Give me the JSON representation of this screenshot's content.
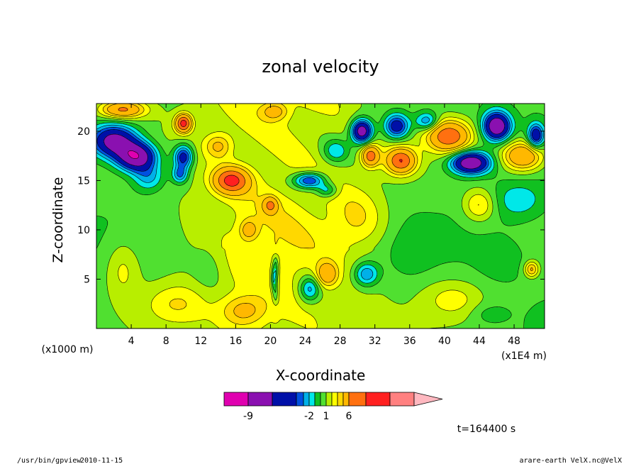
{
  "chart_data": {
    "type": "heatmap",
    "title": "zonal velocity",
    "xlabel": "X-coordinate",
    "ylabel": "Z-coordinate",
    "x_unit_label": "(x1E4 m)",
    "y_unit_label": "(x1000 m)",
    "xlim": [
      0,
      51.5
    ],
    "ylim": [
      0,
      22.8
    ],
    "x_ticks": [
      4,
      8,
      12,
      16,
      20,
      24,
      28,
      32,
      36,
      40,
      44,
      48
    ],
    "y_ticks": [
      5,
      10,
      15,
      20
    ],
    "colorbar": {
      "levels": [
        -12,
        -9,
        -6,
        -4,
        -3,
        -2,
        -1,
        0,
        1,
        2,
        3,
        4,
        6,
        8,
        10,
        13
      ],
      "colors": [
        "#e000b0",
        "#8a10b0",
        "#0010a8",
        "#0050e0",
        "#00b0e8",
        "#00e8e8",
        "#10c020",
        "#50e030",
        "#b8ee00",
        "#ffff00",
        "#ffd800",
        "#ffb800",
        "#ff7010",
        "#ff2020",
        "#ff8080",
        "#ffb8c0"
      ],
      "tick_labels": [
        {
          "value": -9,
          "text": "-9"
        },
        {
          "value": -2,
          "text": "-2"
        },
        {
          "value": 1,
          "text": "1"
        },
        {
          "value": 6,
          "text": "6"
        }
      ]
    },
    "time_label": "t=164400 s",
    "blobs": [
      {
        "x": 2,
        "z": 19,
        "rx": 2.6,
        "rz": 1.6,
        "v": -8
      },
      {
        "x": 4.6,
        "z": 17.4,
        "rx": 2.2,
        "rz": 1.4,
        "v": -9
      },
      {
        "x": 6,
        "z": 15.3,
        "rx": 1.8,
        "rz": 1.4,
        "v": -3
      },
      {
        "x": 10,
        "z": 17.4,
        "rx": 1.1,
        "rz": 1.2,
        "v": -6
      },
      {
        "x": 9.6,
        "z": 15.6,
        "rx": 0.9,
        "rz": 0.9,
        "v": -4
      },
      {
        "x": 3,
        "z": 22.2,
        "rx": 2.6,
        "rz": 0.9,
        "v": 6
      },
      {
        "x": 10,
        "z": 20.8,
        "rx": 0.9,
        "rz": 0.9,
        "v": 8
      },
      {
        "x": 14,
        "z": 18.5,
        "rx": 1.5,
        "rz": 1.2,
        "v": 3
      },
      {
        "x": 15.5,
        "z": 15,
        "rx": 2,
        "rz": 1.3,
        "v": 7
      },
      {
        "x": 20.5,
        "z": 22,
        "rx": 1.5,
        "rz": 0.9,
        "v": 3
      },
      {
        "x": 24.5,
        "z": 15,
        "rx": 1.8,
        "rz": 0.8,
        "v": -6
      },
      {
        "x": 26.5,
        "z": 14,
        "rx": 1.2,
        "rz": 0.7,
        "v": -3
      },
      {
        "x": 27.5,
        "z": 18,
        "rx": 1.5,
        "rz": 1.2,
        "v": -3
      },
      {
        "x": 30.5,
        "z": 20,
        "rx": 1.2,
        "rz": 1.2,
        "v": -9
      },
      {
        "x": 31.5,
        "z": 17.5,
        "rx": 1,
        "rz": 1.1,
        "v": 6
      },
      {
        "x": 34.5,
        "z": 20.5,
        "rx": 1.4,
        "rz": 1.2,
        "v": -6
      },
      {
        "x": 35,
        "z": 17,
        "rx": 1.7,
        "rz": 1.3,
        "v": 7
      },
      {
        "x": 38,
        "z": 21,
        "rx": 1.3,
        "rz": 0.9,
        "v": -4
      },
      {
        "x": 40.5,
        "z": 19.5,
        "rx": 2.5,
        "rz": 1.6,
        "v": 7
      },
      {
        "x": 43,
        "z": 16.8,
        "rx": 2.2,
        "rz": 1.1,
        "v": -9
      },
      {
        "x": 46,
        "z": 20.5,
        "rx": 1.5,
        "rz": 1.4,
        "v": -9
      },
      {
        "x": 49,
        "z": 17.5,
        "rx": 2.4,
        "rz": 1.5,
        "v": 6
      },
      {
        "x": 50.5,
        "z": 19.5,
        "rx": 0.9,
        "rz": 1.2,
        "v": -6
      },
      {
        "x": 48.5,
        "z": 13,
        "rx": 2.8,
        "rz": 1.8,
        "v": -2
      },
      {
        "x": 44,
        "z": 12.5,
        "rx": 1.8,
        "rz": 1.6,
        "v": 3
      },
      {
        "x": 30,
        "z": 11,
        "rx": 3,
        "rz": 3,
        "v": 2
      },
      {
        "x": 31,
        "z": 5.5,
        "rx": 1.4,
        "rz": 1.2,
        "v": -4
      },
      {
        "x": 24.5,
        "z": 4,
        "rx": 1.2,
        "rz": 1.3,
        "v": -4
      },
      {
        "x": 26.5,
        "z": 5.5,
        "rx": 1.2,
        "rz": 1.2,
        "v": 4
      },
      {
        "x": 20.5,
        "z": 5,
        "rx": 0.4,
        "rz": 1.3,
        "v": -6
      },
      {
        "x": 13,
        "z": 6,
        "rx": 2,
        "rz": 3,
        "v": -1
      },
      {
        "x": 3,
        "z": 6,
        "rx": 2,
        "rz": 3,
        "v": 2
      },
      {
        "x": 9,
        "z": 2.5,
        "rx": 3.5,
        "rz": 2,
        "v": 2
      },
      {
        "x": 17,
        "z": 1.8,
        "rx": 2.5,
        "rz": 1.5,
        "v": 3
      },
      {
        "x": 41,
        "z": 3,
        "rx": 3.5,
        "rz": 2,
        "v": 2
      },
      {
        "x": 36,
        "z": 8,
        "rx": 2.5,
        "rz": 2.5,
        "v": -1
      },
      {
        "x": 46.5,
        "z": 7,
        "rx": 2.5,
        "rz": 2,
        "v": -1
      },
      {
        "x": 45,
        "z": 1.5,
        "rx": 2,
        "rz": 1,
        "v": -1
      },
      {
        "x": 50,
        "z": 6,
        "rx": 0.8,
        "rz": 0.8,
        "v": 4
      },
      {
        "x": 20,
        "z": 12.5,
        "rx": 0.8,
        "rz": 0.8,
        "v": 4
      },
      {
        "x": 17.5,
        "z": 10,
        "rx": 1,
        "rz": 1,
        "v": 3
      }
    ]
  },
  "footer": {
    "left_path": "/usr/bin/gpview",
    "left_date": "2010-11-15",
    "right_file": "arare-earth_VelX.nc@VelX"
  }
}
